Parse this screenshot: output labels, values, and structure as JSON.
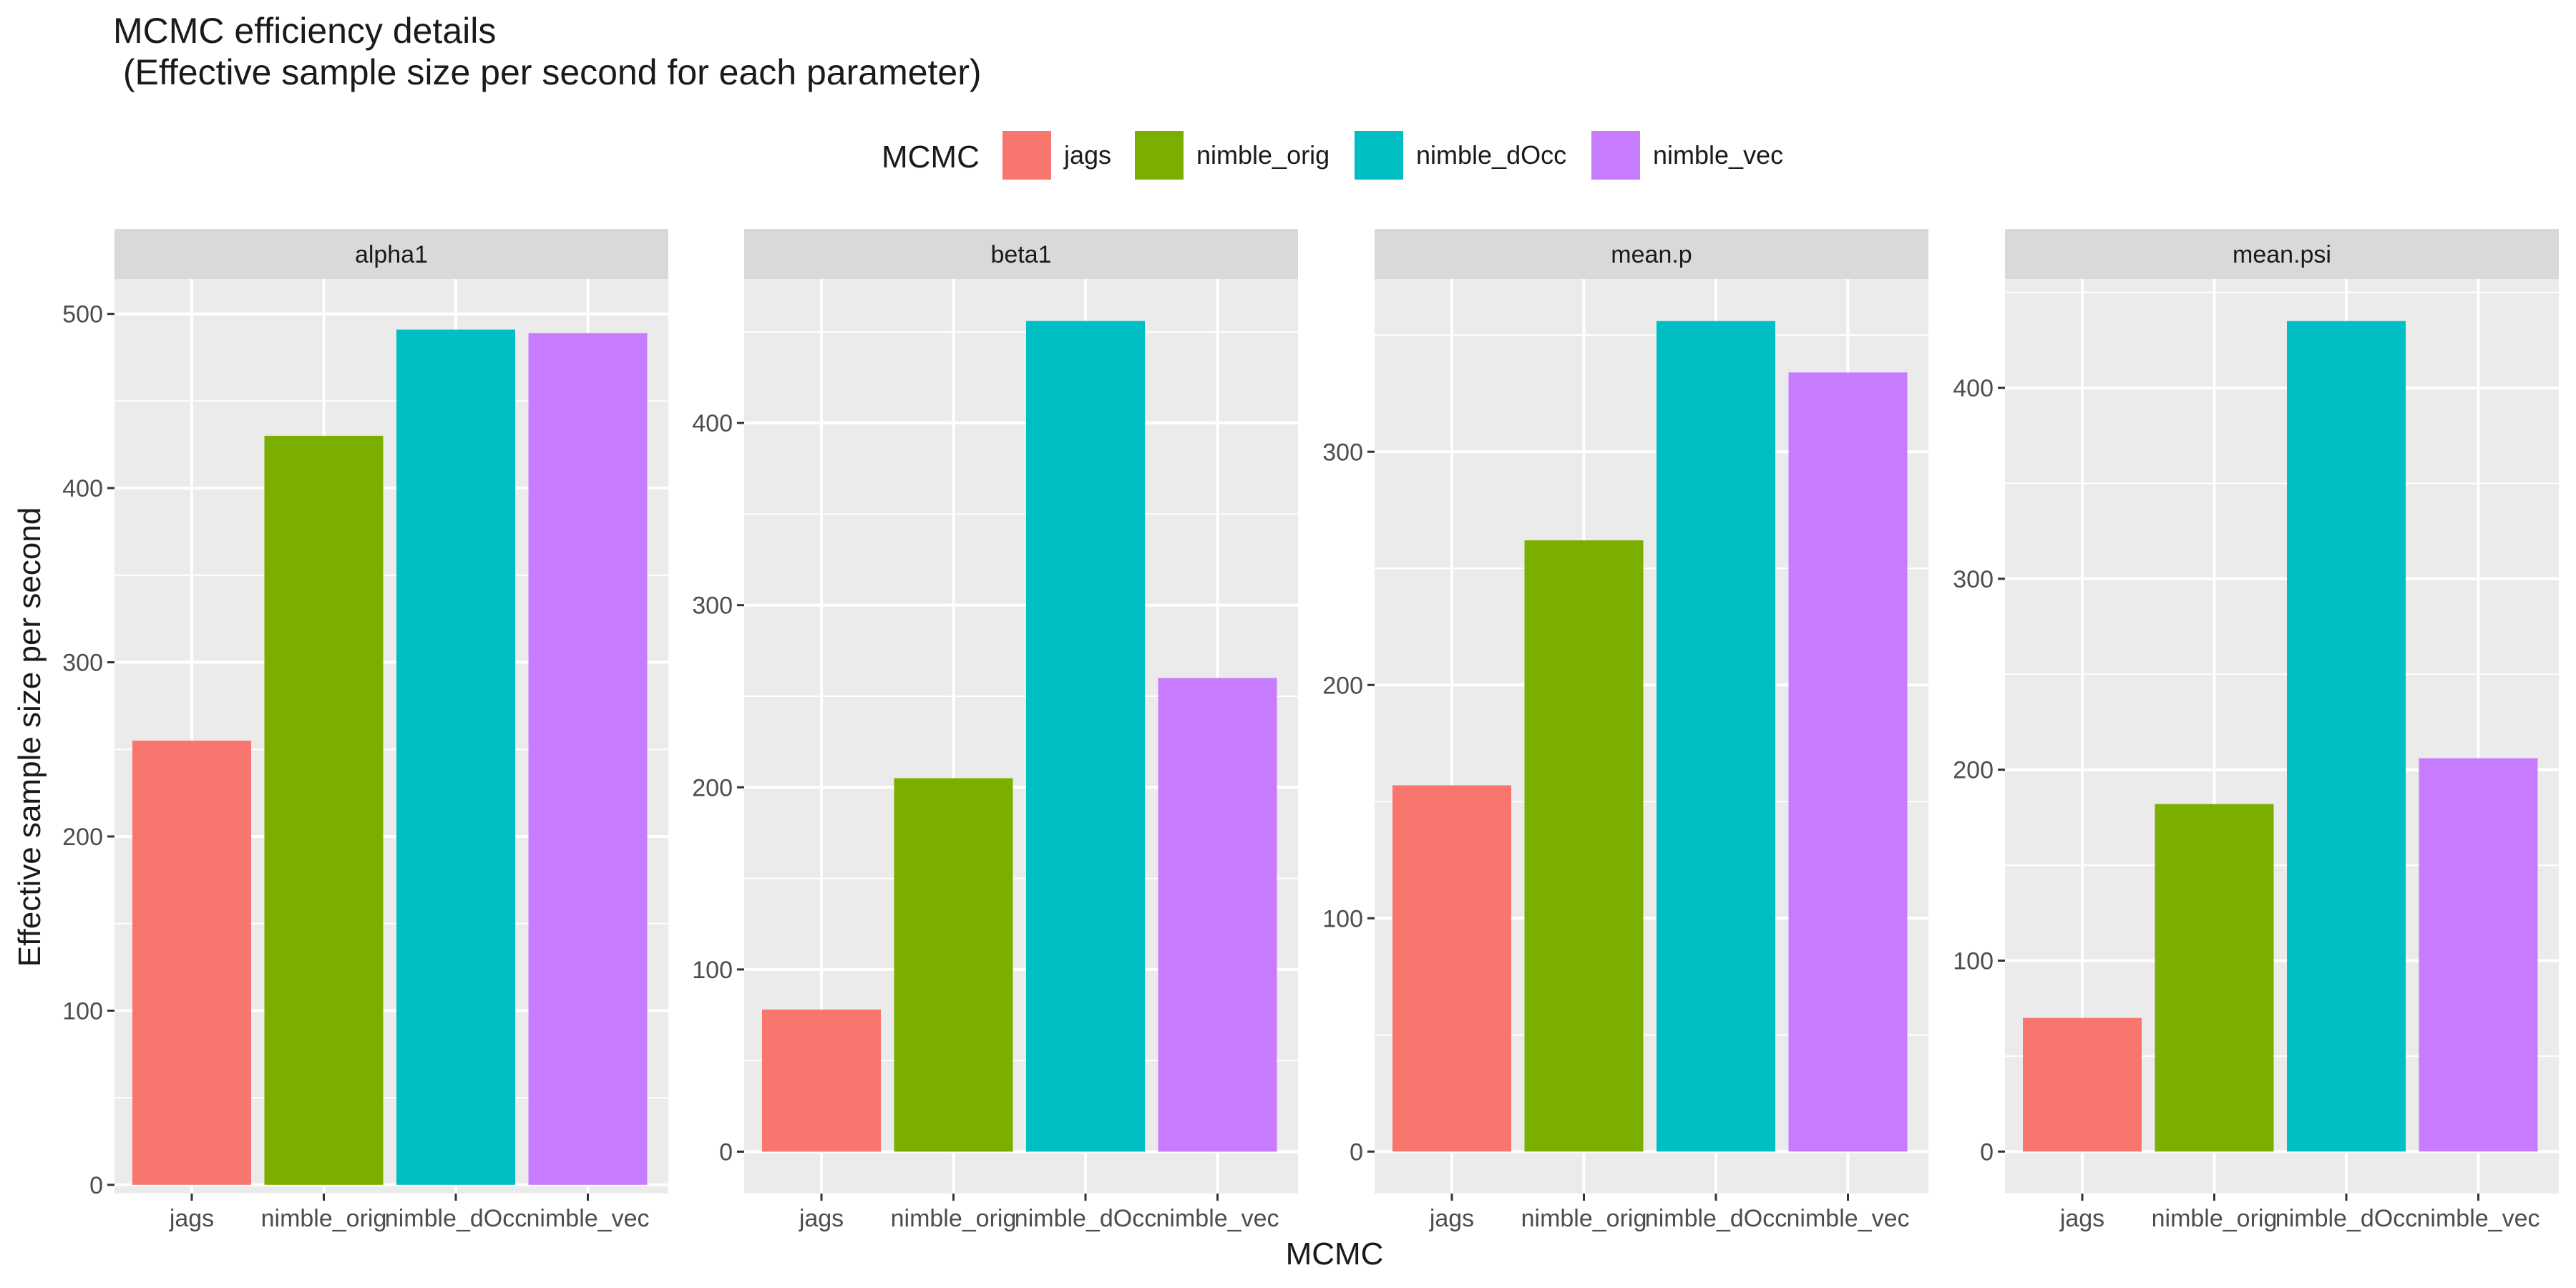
{
  "colors": {
    "jags": "#F8766D",
    "nimble_orig": "#7CAE00",
    "nimble_dOcc": "#00BFC4",
    "nimble_vec": "#C77CFF",
    "panel_background": "#EBEBEB",
    "strip_background": "#D9D9D9",
    "gridline": "#FFFFFF"
  },
  "legend": {
    "title": "MCMC",
    "items": [
      {
        "label": "jags",
        "color": "#F8766D"
      },
      {
        "label": "nimble_orig",
        "color": "#7CAE00"
      },
      {
        "label": "nimble_dOcc",
        "color": "#00BFC4"
      },
      {
        "label": "nimble_vec",
        "color": "#C77CFF"
      }
    ]
  },
  "chart_data": {
    "type": "bar",
    "title": "MCMC efficiency details\n (Effective sample size per second for each parameter)",
    "xlabel": "MCMC",
    "ylabel": "Effective sample size per second",
    "categories": [
      "jags",
      "nimble_orig",
      "nimble_dOcc",
      "nimble_vec"
    ],
    "grid": true,
    "legend_position": "top",
    "panels": [
      {
        "name": "alpha1",
        "values": [
          255,
          430,
          491,
          489
        ],
        "ylim": [
          -5,
          520
        ],
        "ticks": [
          0,
          100,
          200,
          300,
          400,
          500
        ]
      },
      {
        "name": "beta1",
        "values": [
          78,
          205,
          456,
          260
        ],
        "ylim": [
          -23,
          479
        ],
        "ticks": [
          0,
          100,
          200,
          300,
          400
        ]
      },
      {
        "name": "mean.p",
        "values": [
          157,
          262,
          356,
          334
        ],
        "ylim": [
          -18,
          374
        ],
        "ticks": [
          0,
          100,
          200,
          300
        ]
      },
      {
        "name": "mean.psi",
        "values": [
          70,
          182,
          435,
          206
        ],
        "ylim": [
          -22,
          457
        ],
        "ticks": [
          0,
          100,
          200,
          300,
          400
        ]
      }
    ]
  }
}
